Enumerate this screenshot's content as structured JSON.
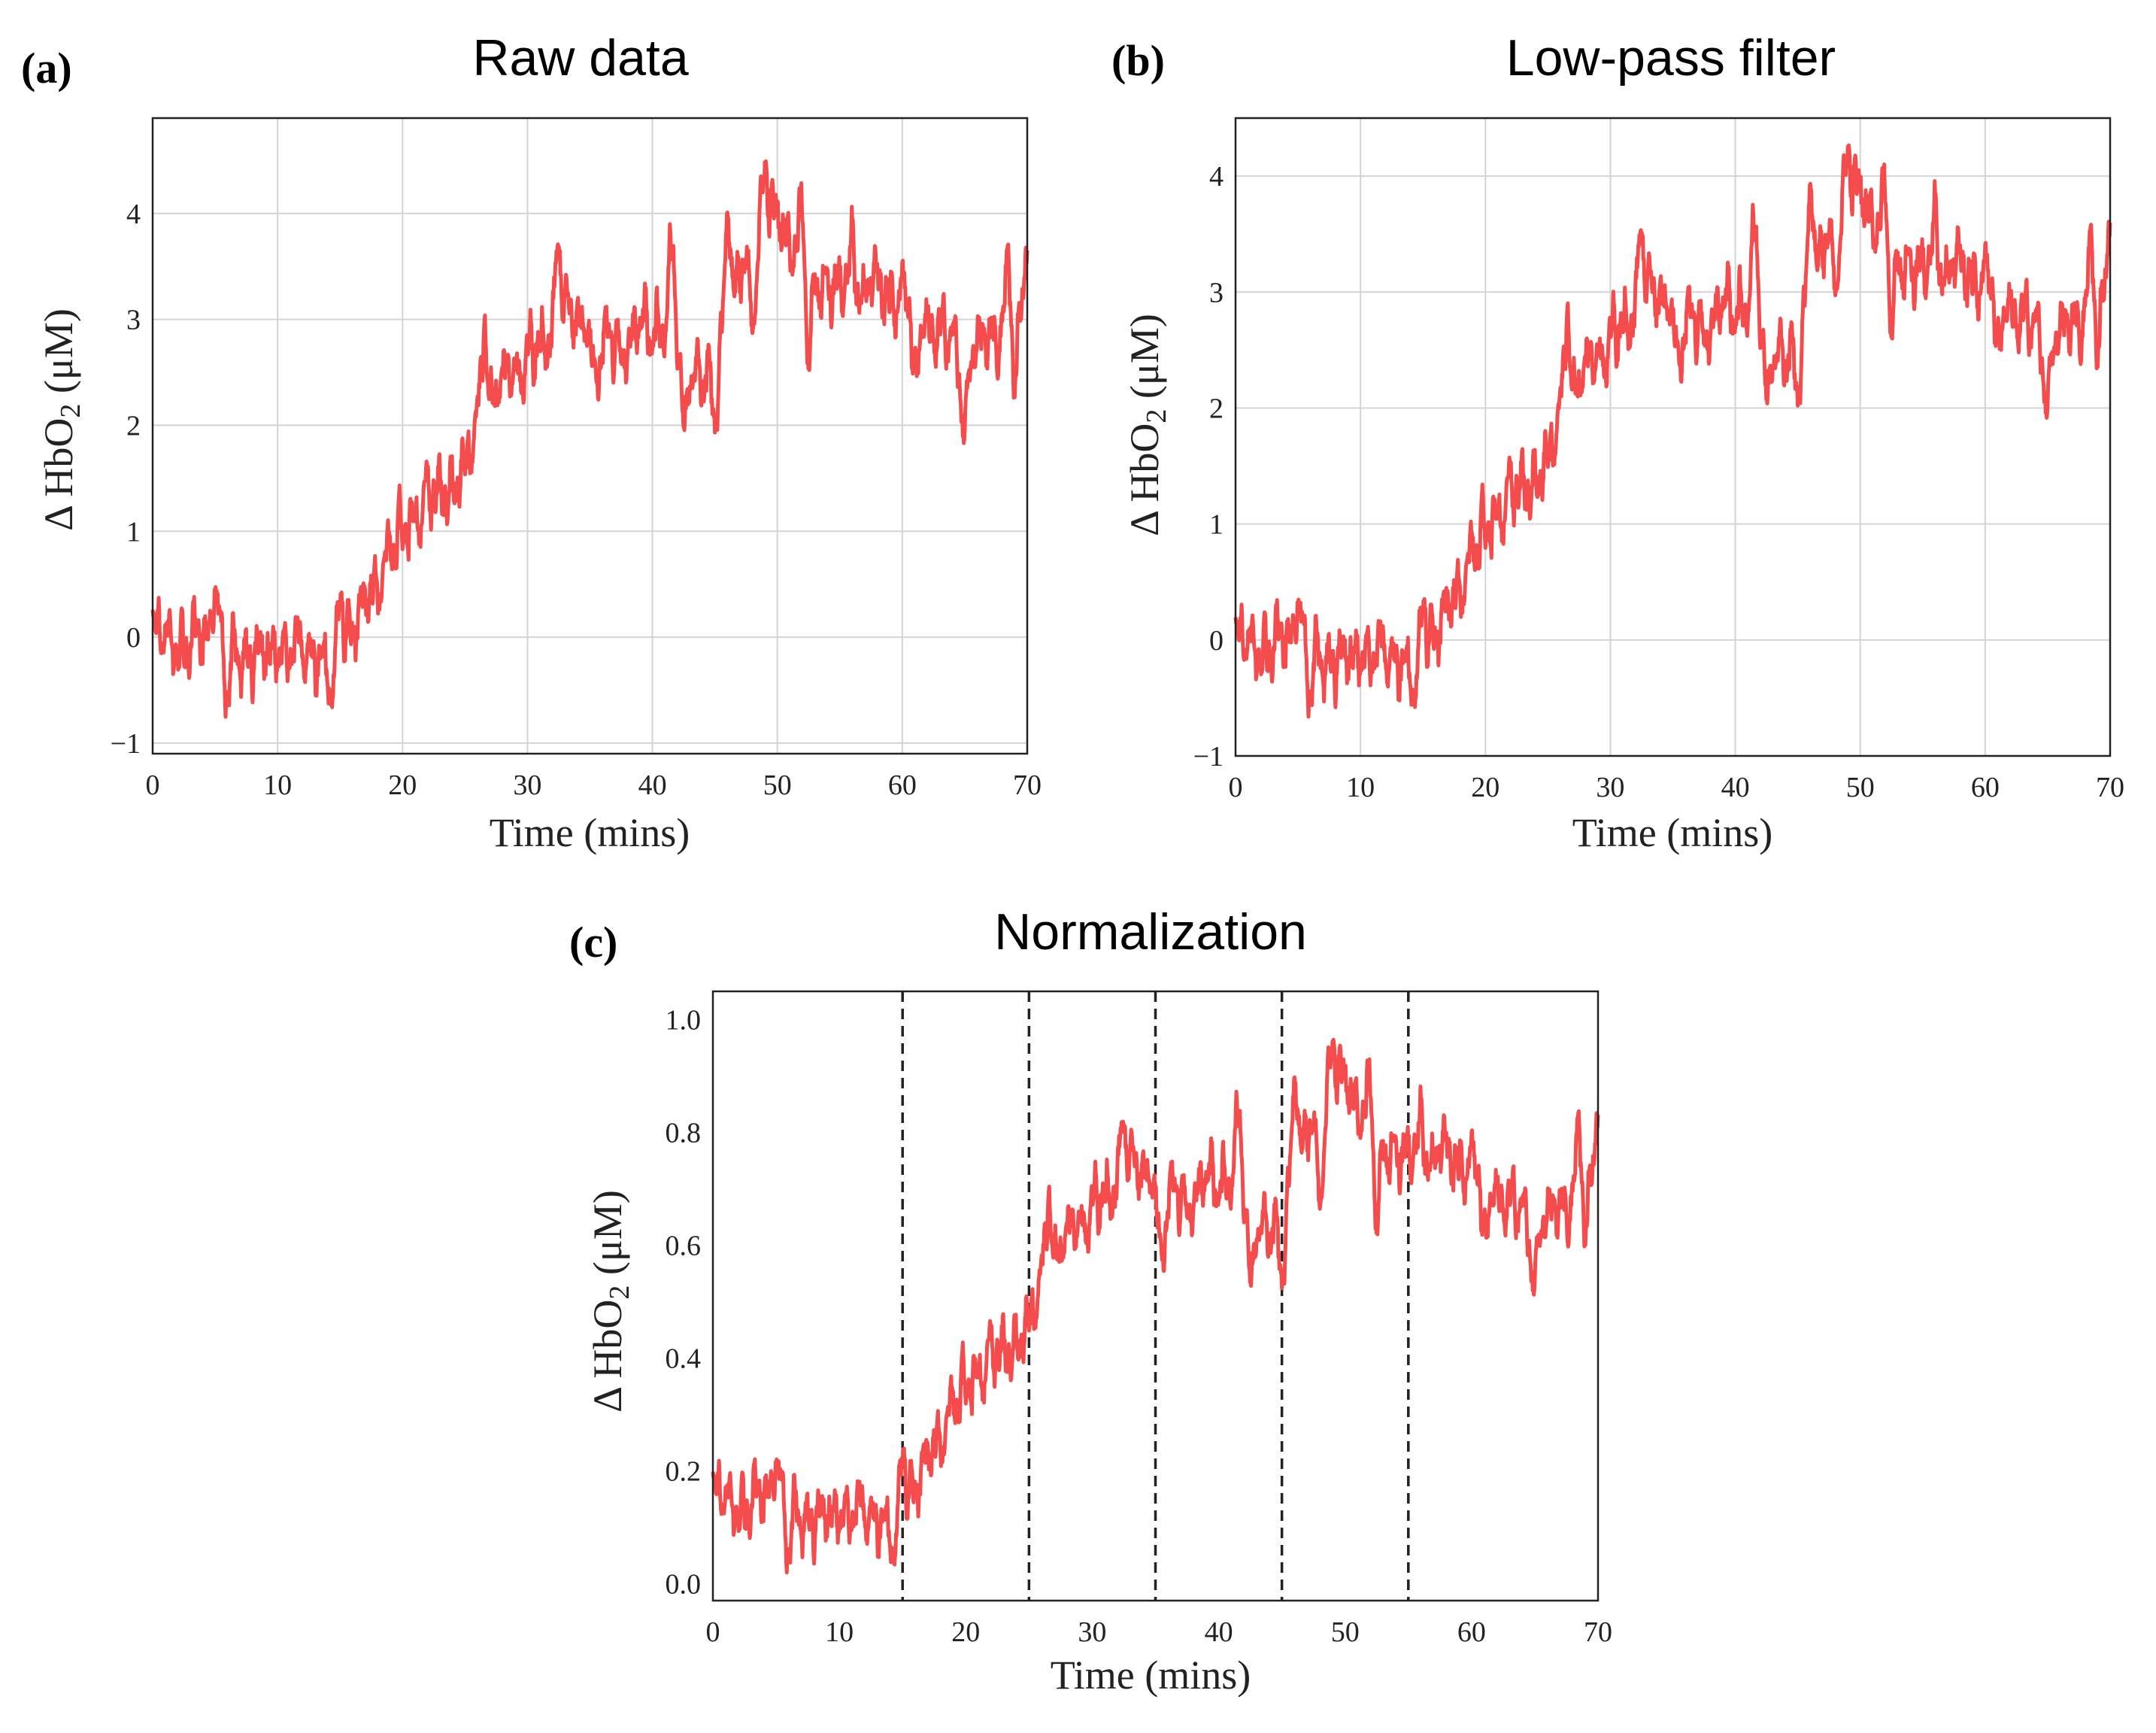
{
  "chart_data": [
    {
      "panel": "(a)",
      "type": "line",
      "title": "Raw data",
      "xlabel": "Time (mins)",
      "ylabel": "Δ HbO2 (μM)",
      "ylabel_main": "Δ HbO",
      "ylabel_sub": "2",
      "ylabel_tail": " (μM)",
      "xlim": [
        0,
        70
      ],
      "ylim": [
        -1.1,
        4.9
      ],
      "xticks": [
        0,
        10,
        20,
        30,
        40,
        50,
        60,
        70
      ],
      "yticks": [
        -1,
        0,
        1,
        2,
        3,
        4
      ],
      "ytick_labels": [
        "−1",
        "0",
        "1",
        "2",
        "3",
        "4"
      ],
      "grid": true,
      "color": "#f44c4c",
      "series": [
        {
          "x": [
            0,
            2.5,
            5,
            7.5,
            10,
            12.5,
            14.5,
            17.5,
            20,
            22.5,
            25,
            27.5,
            30,
            32.5,
            35,
            37.5,
            40,
            42.5,
            44,
            46,
            48,
            50,
            52.5,
            55,
            57.5,
            60,
            62.5,
            65,
            67.5,
            70
          ],
          "y": [
            0.1,
            -0.1,
            0.05,
            -0.2,
            -0.1,
            -0.15,
            -0.2,
            0.4,
            1.0,
            1.3,
            1.6,
            2.4,
            2.6,
            3.0,
            3.0,
            2.7,
            3.0,
            2.8,
            2.3,
            3.0,
            3.7,
            3.9,
            3.5,
            3.2,
            3.3,
            3.2,
            2.9,
            2.7,
            2.9,
            3.2
          ],
          "min_x": [
            6,
            14.3,
            35.5,
            42.5,
            45,
            48,
            52.5,
            61,
            65,
            69
          ],
          "min_y": [
            -0.8,
            -0.85,
            2.0,
            1.8,
            1.8,
            2.9,
            2.3,
            2.1,
            1.7,
            2.1
          ],
          "max_x": [
            5,
            15,
            26.5,
            32.5,
            41.5,
            46,
            49,
            52,
            56,
            68.5,
            70
          ],
          "max_y": [
            0.75,
            0.75,
            3.25,
            4.0,
            3.9,
            4.3,
            4.7,
            4.35,
            4.0,
            3.85,
            4.2
          ]
        }
      ]
    },
    {
      "panel": "(b)",
      "type": "line",
      "title": "Low-pass filter",
      "xlabel": "Time (mins)",
      "ylabel": "Δ HbO2 (μM)",
      "ylabel_main": "Δ HbO",
      "ylabel_sub": "2",
      "ylabel_tail": " (μM)",
      "xlim": [
        0,
        70
      ],
      "ylim": [
        -1.0,
        4.5
      ],
      "xticks": [
        0,
        10,
        20,
        30,
        40,
        50,
        60,
        70
      ],
      "yticks": [
        -1,
        0,
        1,
        2,
        3,
        4
      ],
      "ytick_labels": [
        "−1",
        "0",
        "1",
        "2",
        "3",
        "4"
      ],
      "grid": true,
      "color": "#f44c4c",
      "series": [
        {
          "x": [
            0,
            2.5,
            5,
            7.5,
            10,
            12.5,
            14.5,
            17.5,
            20,
            22.5,
            25,
            27.5,
            30,
            32.5,
            35,
            37.5,
            40,
            42.5,
            44,
            46,
            48,
            50,
            52.5,
            55,
            57.5,
            60,
            62.5,
            65,
            67.5,
            70
          ],
          "y": [
            0.05,
            -0.1,
            0.05,
            -0.2,
            -0.1,
            -0.15,
            -0.2,
            0.35,
            0.95,
            1.25,
            1.55,
            2.3,
            2.55,
            2.95,
            2.95,
            2.65,
            2.95,
            2.75,
            2.3,
            3.0,
            3.6,
            3.8,
            3.4,
            3.1,
            3.2,
            3.1,
            2.8,
            2.6,
            2.8,
            3.1
          ],
          "min_x": [
            6,
            14.3,
            35.5,
            42.5,
            45,
            48,
            52.5,
            61,
            65,
            69
          ],
          "min_y": [
            -0.7,
            -0.75,
            2.0,
            1.9,
            1.9,
            3.0,
            2.4,
            2.2,
            1.8,
            2.2
          ],
          "max_x": [
            5,
            15,
            26.5,
            32.5,
            41.5,
            46,
            49,
            52,
            56,
            68.5,
            70
          ],
          "max_y": [
            0.6,
            0.65,
            3.1,
            3.8,
            3.75,
            4.2,
            4.45,
            4.15,
            3.9,
            3.7,
            4.1
          ]
        }
      ]
    },
    {
      "panel": "(c)",
      "type": "line",
      "title": "Normalization",
      "xlabel": "Time (mins)",
      "ylabel": "Δ HbO2 (μM)",
      "ylabel_main": "Δ HbO",
      "ylabel_sub": "2",
      "ylabel_tail": " (μM)",
      "xlim": [
        0,
        70
      ],
      "ylim": [
        -0.03,
        1.05
      ],
      "xticks": [
        0,
        10,
        20,
        30,
        40,
        50,
        60,
        70
      ],
      "yticks": [
        0.0,
        0.2,
        0.4,
        0.6,
        0.8,
        1.0
      ],
      "ytick_labels": [
        "0.0",
        "0.2",
        "0.4",
        "0.6",
        "0.8",
        "1.0"
      ],
      "grid": false,
      "vlines": [
        15,
        25,
        35,
        45,
        55
      ],
      "color": "#f44c4c",
      "series": [
        {
          "x": [
            0,
            2.5,
            5,
            7.5,
            10,
            12.5,
            14.5,
            17.5,
            20,
            22.5,
            25,
            27.5,
            30,
            32.5,
            35,
            37.5,
            40,
            42.5,
            44,
            46,
            48,
            50,
            52.5,
            55,
            57.5,
            60,
            62.5,
            65,
            67.5,
            70
          ],
          "y": [
            0.17,
            0.13,
            0.17,
            0.11,
            0.13,
            0.12,
            0.11,
            0.24,
            0.35,
            0.4,
            0.46,
            0.61,
            0.66,
            0.73,
            0.73,
            0.67,
            0.73,
            0.69,
            0.6,
            0.73,
            0.84,
            0.88,
            0.8,
            0.74,
            0.76,
            0.74,
            0.68,
            0.64,
            0.68,
            0.74
          ],
          "min_x": [
            6,
            14.3,
            35.5,
            42.5,
            45,
            48,
            52.5,
            61,
            65,
            69
          ],
          "min_y": [
            0.01,
            0.0,
            0.5,
            0.5,
            0.5,
            0.67,
            0.58,
            0.55,
            0.49,
            0.57
          ],
          "max_x": [
            5,
            15,
            26.5,
            32.5,
            41.5,
            46,
            49,
            52,
            56,
            68.5,
            70
          ],
          "max_y": [
            0.27,
            0.3,
            0.74,
            0.87,
            0.87,
            0.95,
            1.0,
            0.94,
            0.87,
            0.86,
            0.93
          ]
        }
      ]
    }
  ]
}
